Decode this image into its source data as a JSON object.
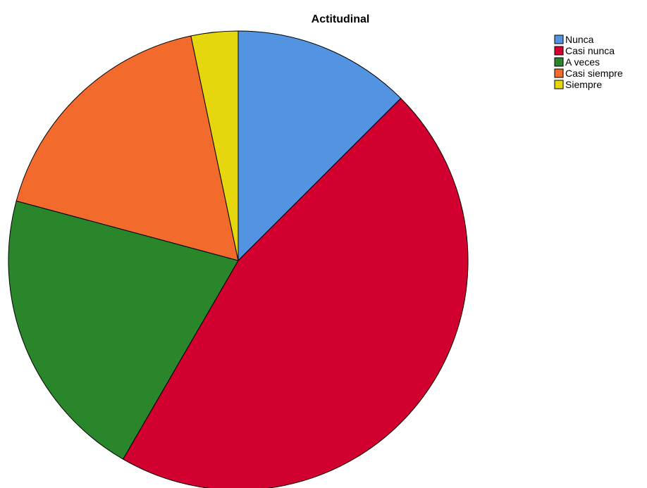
{
  "chart_data": {
    "type": "pie",
    "title": "Actitudinal",
    "categories": [
      "Nunca",
      "Casi nunca",
      "A veces",
      "Casi siempre",
      "Siempre"
    ],
    "values": [
      12.5,
      45.8,
      20.8,
      17.5,
      3.3
    ],
    "unit": "percent",
    "colors": [
      "#5294e2",
      "#d2002e",
      "#2a862a",
      "#f26b2c",
      "#e6d60d"
    ],
    "start_angle": "12 o'clock",
    "direction": "clockwise",
    "legend": {
      "position": "top-right",
      "items": [
        "Nunca",
        "Casi nunca",
        "A veces",
        "Casi siempre",
        "Siempre"
      ]
    }
  }
}
